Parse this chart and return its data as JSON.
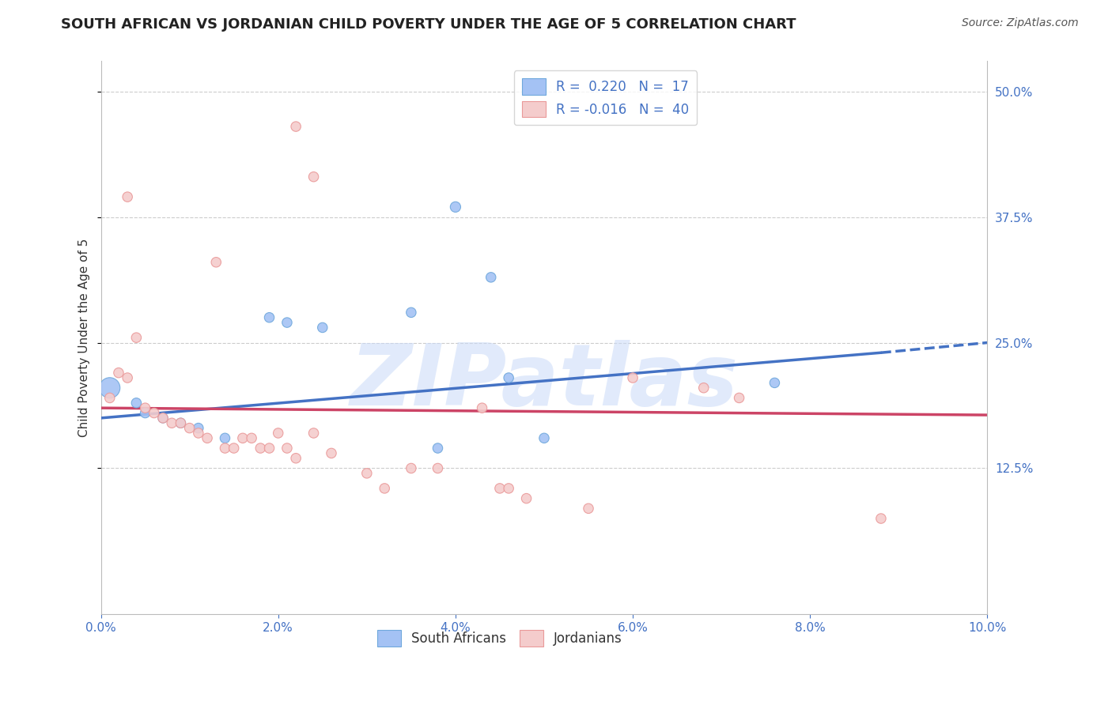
{
  "title": "SOUTH AFRICAN VS JORDANIAN CHILD POVERTY UNDER THE AGE OF 5 CORRELATION CHART",
  "source": "Source: ZipAtlas.com",
  "ylabel": "Child Poverty Under the Age of 5",
  "xlim": [
    0.0,
    10.0
  ],
  "ylim": [
    -2.0,
    53.0
  ],
  "yticks": [
    12.5,
    25.0,
    37.5,
    50.0
  ],
  "xticks": [
    0.0,
    2.0,
    4.0,
    6.0,
    8.0,
    10.0
  ],
  "xtick_labels": [
    "0.0%",
    "2.0%",
    "4.0%",
    "6.0%",
    "8.0%",
    "10.0%"
  ],
  "ytick_labels": [
    "12.5%",
    "25.0%",
    "37.5%",
    "50.0%"
  ],
  "legend_r_blue": "R =  0.220",
  "legend_n_blue": "N =  17",
  "legend_r_pink": "R = -0.016",
  "legend_n_pink": "N =  40",
  "blue_color": "#a4c2f4",
  "pink_color": "#f4cccc",
  "blue_edge": "#6fa8dc",
  "pink_edge": "#ea9999",
  "trend_blue": "#4472c4",
  "trend_pink": "#cc4466",
  "watermark_color": "#c9daf8",
  "blue_scatter_x": [
    0.1,
    0.4,
    0.5,
    0.7,
    0.9,
    1.1,
    1.4,
    2.1,
    2.5,
    3.5,
    4.0,
    4.4,
    4.6,
    5.0,
    7.6,
    3.8,
    1.9
  ],
  "blue_scatter_y": [
    20.5,
    19.0,
    18.0,
    17.5,
    17.0,
    16.5,
    15.5,
    27.0,
    26.5,
    28.0,
    38.5,
    31.5,
    21.5,
    15.5,
    21.0,
    14.5,
    27.5
  ],
  "blue_scatter_size": [
    350,
    80,
    80,
    80,
    80,
    80,
    80,
    80,
    80,
    80,
    90,
    80,
    80,
    80,
    80,
    80,
    80
  ],
  "pink_scatter_x": [
    0.1,
    0.2,
    0.3,
    0.4,
    0.5,
    0.6,
    0.7,
    0.8,
    0.9,
    1.0,
    1.1,
    1.2,
    1.4,
    1.5,
    1.6,
    1.7,
    1.8,
    1.9,
    2.0,
    2.1,
    2.2,
    2.4,
    2.6,
    3.0,
    3.2,
    3.5,
    3.8,
    4.3,
    4.5,
    4.6,
    4.8,
    5.5,
    6.0,
    6.8,
    7.2,
    8.8,
    2.2,
    2.4,
    1.3,
    0.3
  ],
  "pink_scatter_y": [
    19.5,
    22.0,
    21.5,
    25.5,
    18.5,
    18.0,
    17.5,
    17.0,
    17.0,
    16.5,
    16.0,
    15.5,
    14.5,
    14.5,
    15.5,
    15.5,
    14.5,
    14.5,
    16.0,
    14.5,
    13.5,
    16.0,
    14.0,
    12.0,
    10.5,
    12.5,
    12.5,
    18.5,
    10.5,
    10.5,
    9.5,
    8.5,
    21.5,
    20.5,
    19.5,
    7.5,
    46.5,
    41.5,
    33.0,
    39.5
  ],
  "pink_scatter_size": [
    80,
    80,
    80,
    80,
    80,
    80,
    80,
    80,
    80,
    80,
    80,
    80,
    80,
    80,
    80,
    80,
    80,
    80,
    80,
    80,
    80,
    80,
    80,
    80,
    80,
    80,
    80,
    80,
    80,
    80,
    80,
    80,
    80,
    80,
    80,
    80,
    80,
    80,
    80,
    80
  ],
  "blue_trend_x0": 0.0,
  "blue_trend_y0": 17.5,
  "blue_trend_x1": 8.8,
  "blue_trend_y1": 24.0,
  "blue_dash_x0": 8.8,
  "blue_dash_y0": 24.0,
  "blue_dash_x1": 10.0,
  "blue_dash_y1": 25.0,
  "pink_trend_x0": 0.0,
  "pink_trend_y0": 18.5,
  "pink_trend_x1": 10.0,
  "pink_trend_y1": 17.8,
  "grid_color": "#cccccc",
  "background_color": "#ffffff",
  "title_fontsize": 13,
  "source_fontsize": 10,
  "label_fontsize": 11,
  "tick_fontsize": 11,
  "legend_fontsize": 12
}
